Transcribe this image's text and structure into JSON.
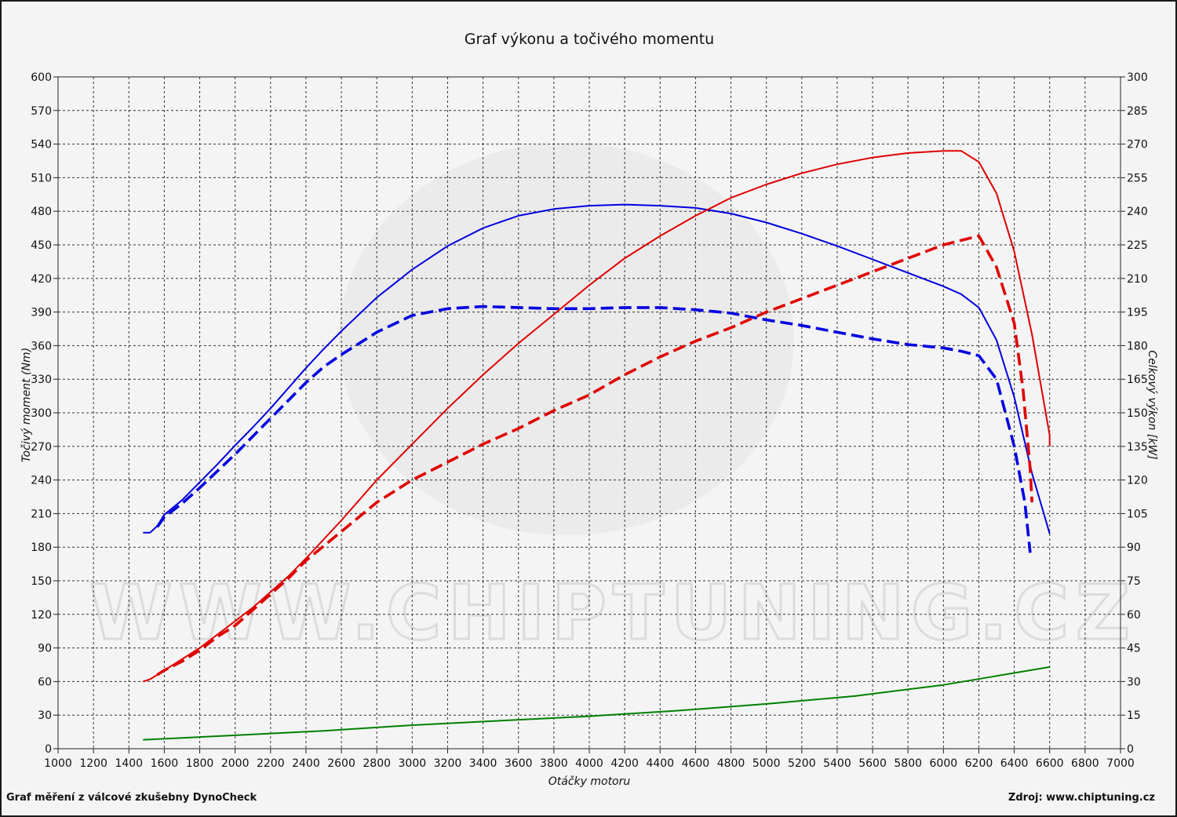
{
  "chart_data": {
    "type": "line",
    "title": "Graf výkonu a točivého momentu",
    "xlabel": "Otáčky motoru",
    "ylabel_left": "Točivý moment (Nm)",
    "ylabel_right": "Celkový výkon [kW]",
    "xlim": [
      1000,
      7000
    ],
    "ylim_left": [
      0,
      600
    ],
    "ylim_right": [
      0,
      300
    ],
    "x_ticks": [
      "1000",
      "1200",
      "1400",
      "1600",
      "1800",
      "2000",
      "2200",
      "2400",
      "2600",
      "2800",
      "3000",
      "3200",
      "3400",
      "3600",
      "3800",
      "4000",
      "4200",
      "4400",
      "4600",
      "4800",
      "5000",
      "5200",
      "5400",
      "5600",
      "5800",
      "6000",
      "6200",
      "6400",
      "6600",
      "6800",
      "7000"
    ],
    "y_left_ticks": [
      "0",
      "30",
      "60",
      "90",
      "120",
      "150",
      "180",
      "210",
      "240",
      "270",
      "300",
      "330",
      "360",
      "390",
      "420",
      "450",
      "480",
      "510",
      "540",
      "570",
      "600"
    ],
    "y_right_ticks": [
      "0",
      "15",
      "30",
      "45",
      "60",
      "75",
      "90",
      "105",
      "120",
      "135",
      "150",
      "165",
      "180",
      "195",
      "210",
      "225",
      "240",
      "255",
      "270",
      "285",
      "300"
    ],
    "grid": true,
    "watermark": "WWW.CHIPTUNING.CZ",
    "series": [
      {
        "axis": "left",
        "color": "#0000e0",
        "dash": "solid",
        "points": [
          [
            1480,
            193
          ],
          [
            1520,
            193
          ],
          [
            1560,
            199
          ],
          [
            1600,
            209
          ],
          [
            1700,
            222
          ],
          [
            1800,
            238
          ],
          [
            1900,
            254
          ],
          [
            2000,
            271
          ],
          [
            2100,
            287
          ],
          [
            2200,
            304
          ],
          [
            2300,
            322
          ],
          [
            2400,
            340
          ],
          [
            2500,
            357
          ],
          [
            2600,
            373
          ],
          [
            2800,
            403
          ],
          [
            3000,
            428
          ],
          [
            3200,
            449
          ],
          [
            3400,
            465
          ],
          [
            3600,
            476
          ],
          [
            3800,
            482
          ],
          [
            4000,
            485
          ],
          [
            4200,
            486
          ],
          [
            4400,
            485
          ],
          [
            4600,
            483
          ],
          [
            4800,
            478
          ],
          [
            5000,
            470
          ],
          [
            5200,
            460
          ],
          [
            5400,
            449
          ],
          [
            5600,
            437
          ],
          [
            5800,
            425
          ],
          [
            6000,
            413
          ],
          [
            6100,
            406
          ],
          [
            6200,
            394
          ],
          [
            6300,
            365
          ],
          [
            6400,
            314
          ],
          [
            6500,
            246
          ],
          [
            6580,
            203
          ],
          [
            6600,
            192
          ]
        ]
      },
      {
        "axis": "left",
        "color": "#0000e0",
        "dash": "dashed",
        "points": [
          [
            1560,
            198
          ],
          [
            1600,
            207
          ],
          [
            1700,
            219
          ],
          [
            1800,
            233
          ],
          [
            1900,
            248
          ],
          [
            2000,
            263
          ],
          [
            2100,
            279
          ],
          [
            2200,
            295
          ],
          [
            2300,
            311
          ],
          [
            2400,
            327
          ],
          [
            2500,
            341
          ],
          [
            2600,
            352
          ],
          [
            2800,
            372
          ],
          [
            3000,
            387
          ],
          [
            3200,
            393
          ],
          [
            3400,
            395
          ],
          [
            3600,
            394
          ],
          [
            3800,
            393
          ],
          [
            4000,
            393
          ],
          [
            4200,
            394
          ],
          [
            4400,
            394
          ],
          [
            4600,
            392
          ],
          [
            4800,
            389
          ],
          [
            5000,
            383
          ],
          [
            5200,
            378
          ],
          [
            5400,
            372
          ],
          [
            5600,
            366
          ],
          [
            5800,
            361
          ],
          [
            6000,
            358
          ],
          [
            6100,
            355
          ],
          [
            6200,
            351
          ],
          [
            6300,
            330
          ],
          [
            6400,
            270
          ],
          [
            6460,
            220
          ],
          [
            6490,
            175
          ]
        ]
      },
      {
        "axis": "right",
        "color": "#e00000",
        "dash": "solid",
        "points": [
          [
            1480,
            30
          ],
          [
            1520,
            31
          ],
          [
            1560,
            33
          ],
          [
            1600,
            35
          ],
          [
            1700,
            40
          ],
          [
            1800,
            45
          ],
          [
            1900,
            51
          ],
          [
            2000,
            57
          ],
          [
            2100,
            63
          ],
          [
            2200,
            70
          ],
          [
            2300,
            77
          ],
          [
            2400,
            85
          ],
          [
            2600,
            102
          ],
          [
            2800,
            120
          ],
          [
            3000,
            136
          ],
          [
            3200,
            152
          ],
          [
            3400,
            167
          ],
          [
            3600,
            181
          ],
          [
            3800,
            194
          ],
          [
            4000,
            207
          ],
          [
            4200,
            219
          ],
          [
            4400,
            229
          ],
          [
            4600,
            238
          ],
          [
            4800,
            246
          ],
          [
            5000,
            252
          ],
          [
            5200,
            257
          ],
          [
            5400,
            261
          ],
          [
            5600,
            264
          ],
          [
            5800,
            266
          ],
          [
            6000,
            267
          ],
          [
            6100,
            267
          ],
          [
            6200,
            262
          ],
          [
            6300,
            248
          ],
          [
            6400,
            222
          ],
          [
            6500,
            185
          ],
          [
            6560,
            158
          ],
          [
            6600,
            140
          ],
          [
            6600,
            135
          ]
        ]
      },
      {
        "axis": "right",
        "color": "#e00000",
        "dash": "dashed",
        "points": [
          [
            1560,
            33
          ],
          [
            1600,
            35
          ],
          [
            1700,
            39
          ],
          [
            1800,
            44
          ],
          [
            1900,
            50
          ],
          [
            2000,
            55
          ],
          [
            2100,
            62
          ],
          [
            2200,
            69
          ],
          [
            2300,
            76
          ],
          [
            2400,
            84
          ],
          [
            2600,
            97
          ],
          [
            2800,
            110
          ],
          [
            3000,
            120
          ],
          [
            3200,
            128
          ],
          [
            3400,
            136
          ],
          [
            3600,
            143
          ],
          [
            3800,
            151
          ],
          [
            4000,
            158
          ],
          [
            4200,
            167
          ],
          [
            4400,
            175
          ],
          [
            4600,
            182
          ],
          [
            4800,
            188
          ],
          [
            5000,
            195
          ],
          [
            5200,
            201
          ],
          [
            5400,
            207
          ],
          [
            5600,
            213
          ],
          [
            5800,
            219
          ],
          [
            6000,
            225
          ],
          [
            6200,
            229
          ],
          [
            6300,
            215
          ],
          [
            6400,
            190
          ],
          [
            6450,
            160
          ],
          [
            6490,
            125
          ],
          [
            6500,
            110
          ]
        ]
      },
      {
        "axis": "left",
        "color": "#008000",
        "dash": "solid",
        "points": [
          [
            1480,
            8
          ],
          [
            2000,
            12
          ],
          [
            2500,
            16
          ],
          [
            3000,
            21
          ],
          [
            3500,
            25
          ],
          [
            4000,
            29
          ],
          [
            4500,
            34
          ],
          [
            5000,
            40
          ],
          [
            5500,
            47
          ],
          [
            6000,
            57
          ],
          [
            6300,
            65
          ],
          [
            6600,
            73
          ]
        ]
      }
    ]
  },
  "footer": {
    "left": "Graf měření z válcové zkušebny DynoCheck",
    "right": "Zdroj: www.chiptuning.cz"
  }
}
